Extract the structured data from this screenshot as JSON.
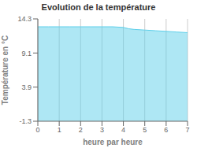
{
  "chart_data": {
    "type": "area",
    "title": "Evolution de la température",
    "xlabel": "heure par heure",
    "ylabel": "Température en °C",
    "x": [
      0,
      0.5,
      1,
      1.5,
      2,
      2.5,
      3,
      3.5,
      4,
      4.25,
      4.5,
      5,
      5.5,
      6,
      6.5,
      7
    ],
    "values": [
      13.1,
      13.1,
      13.1,
      13.1,
      13.1,
      13.1,
      13.1,
      13.1,
      13.0,
      12.8,
      12.7,
      12.6,
      12.5,
      12.4,
      12.3,
      12.2
    ],
    "xlim": [
      0,
      7
    ],
    "ylim": [
      -1.3,
      14.3
    ],
    "xticks": [
      0,
      1,
      2,
      3,
      4,
      5,
      6,
      7
    ],
    "yticks": [
      -1.3,
      3.9,
      9.1,
      14.3
    ],
    "color": "#5dcfea",
    "grid": "x"
  }
}
